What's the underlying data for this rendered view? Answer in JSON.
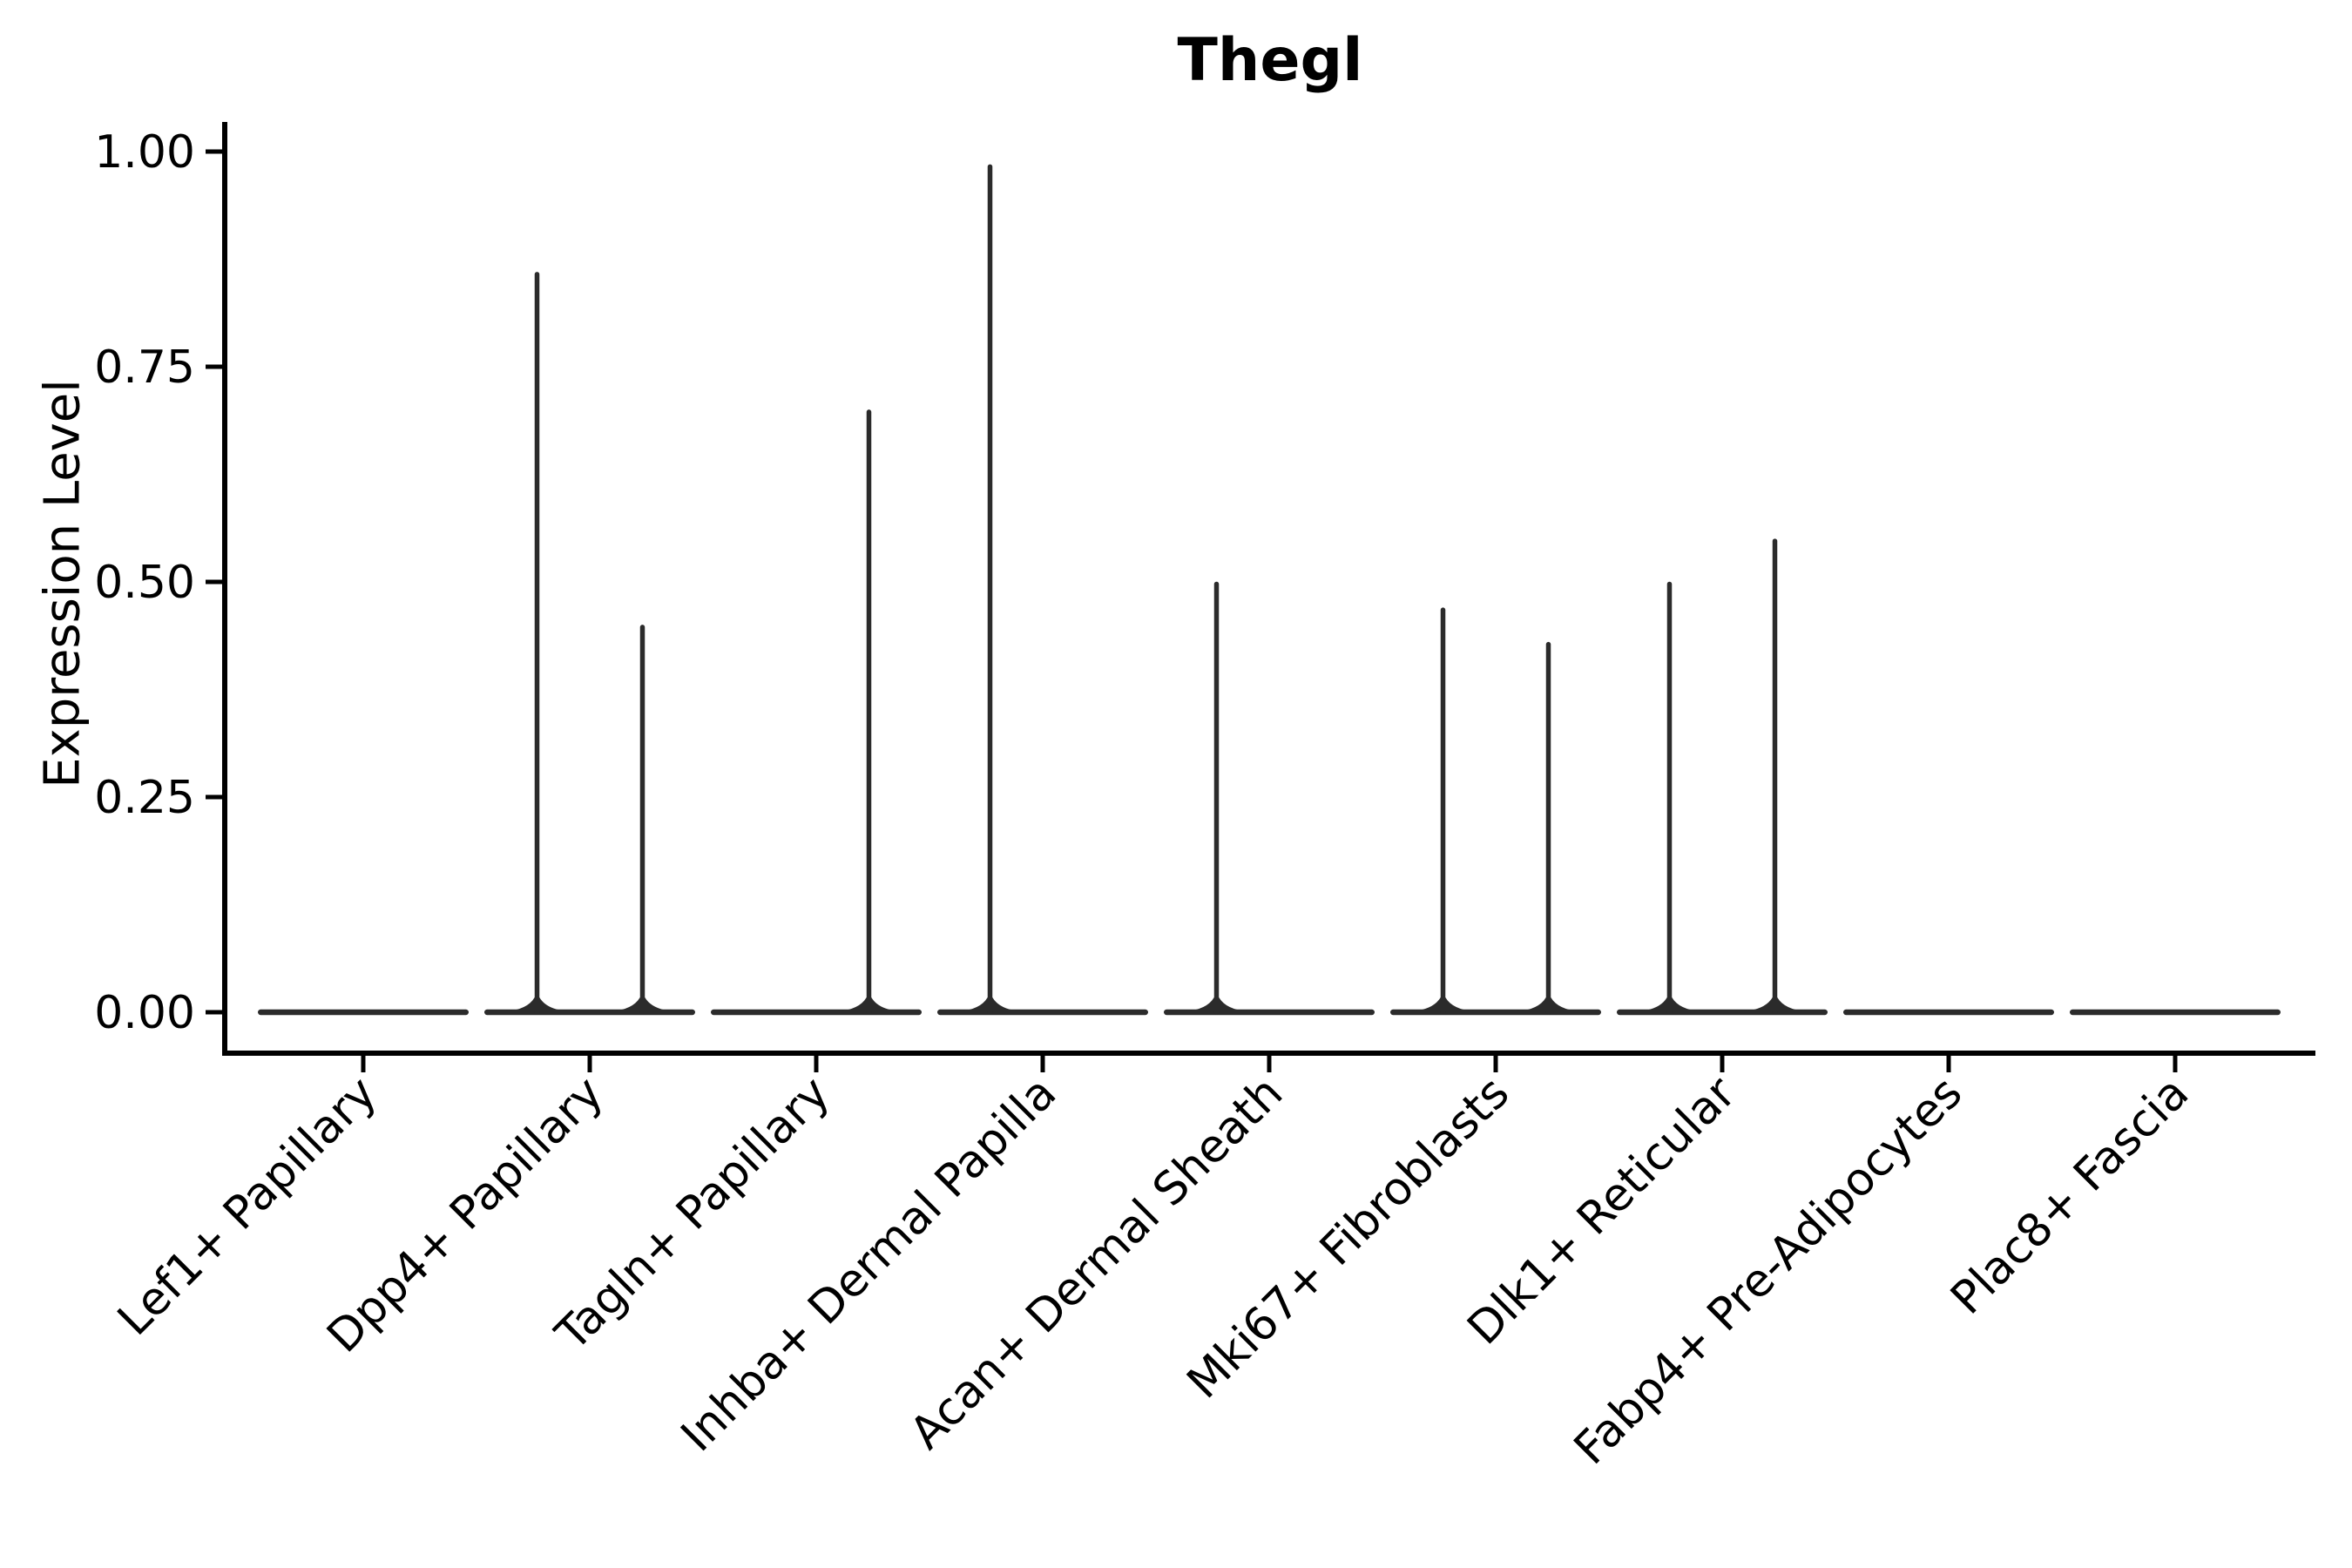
{
  "chart_data": {
    "type": "violin",
    "style": "split-violin, flat at zero with thin density spikes to max expression",
    "title": "Thegl",
    "ylabel": "Expression Level",
    "xlabel": "",
    "ylim": [
      0,
      1.0
    ],
    "ytick_values": [
      0,
      0.25,
      0.5,
      0.75,
      1.0
    ],
    "ytick_labels": [
      "0.00",
      "0.25",
      "0.50",
      "0.75",
      "1.00"
    ],
    "grid": false,
    "legend_position": "none",
    "background_color": "#ffffff",
    "axis_color": "#000000",
    "violin_color": "#2b2b2b",
    "categories": [
      "Lef1+ Papillary",
      "Dpp4+ Papillary",
      "Tagln+ Papillary",
      "Inhba+ Dermal Papilla",
      "Acan+ Dermal Sheath",
      "Mki67+ Fibroblasts",
      "Dlk1+ Reticular",
      "Fabp4+ Pre-Adipocytes",
      "Plac8+ Fascia"
    ],
    "series": [
      {
        "name": "left-half-violin-max-expression",
        "values": [
          0,
          0.86,
          0,
          0.985,
          0.5,
          0.47,
          0.5,
          0,
          0
        ]
      },
      {
        "name": "right-half-violin-max-expression",
        "values": [
          0,
          0.45,
          0.7,
          0,
          0,
          0.43,
          0.55,
          0,
          0
        ]
      }
    ],
    "baseline_value": 0.0
  }
}
